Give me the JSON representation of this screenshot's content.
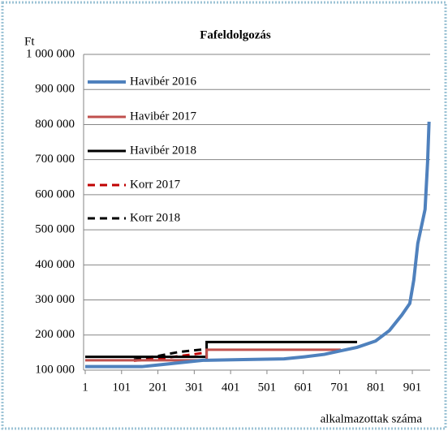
{
  "chart_data": {
    "type": "line",
    "title": "Fafeldolgozás",
    "y_label": "Ft",
    "x_label": "alkalmazottak száma",
    "xlim": [
      1,
      950
    ],
    "xticks": [
      1,
      101,
      201,
      301,
      401,
      501,
      601,
      701,
      801,
      901
    ],
    "ylim": [
      100000,
      1000000
    ],
    "yticks": [
      {
        "value": 100000,
        "label": "100 000"
      },
      {
        "value": 200000,
        "label": "200 000"
      },
      {
        "value": 300000,
        "label": "300 000"
      },
      {
        "value": 400000,
        "label": "400 000"
      },
      {
        "value": 500000,
        "label": "500 000"
      },
      {
        "value": 600000,
        "label": "600 000"
      },
      {
        "value": 700000,
        "label": "700 000"
      },
      {
        "value": 800000,
        "label": "800 000"
      },
      {
        "value": 900000,
        "label": "900 000"
      },
      {
        "value": 1000000,
        "label": "1 000 000"
      }
    ],
    "grid": true,
    "legend": "upper left",
    "series": [
      {
        "name": "Havibér 2016",
        "color": "#4f81bd",
        "dashed": false,
        "x": [
          1,
          157,
          213,
          325,
          436,
          548,
          604,
          659,
          704,
          749,
          800,
          838,
          872,
          894,
          905,
          916,
          928,
          936,
          943,
          947
        ],
        "values": [
          110000,
          110000,
          116000,
          128000,
          130000,
          132000,
          138000,
          145000,
          155000,
          165000,
          183000,
          213000,
          257000,
          290000,
          357000,
          461000,
          519000,
          558000,
          693000,
          808000
        ]
      },
      {
        "name": "Havibér 2017",
        "color": "#c0504d",
        "dashed": false,
        "x": [
          1,
          335,
          335,
          704
        ],
        "values": [
          128000,
          128000,
          158000,
          158000
        ]
      },
      {
        "name": "Havibér 2018",
        "color": "#000000",
        "dashed": false,
        "x": [
          1,
          335,
          335,
          749
        ],
        "values": [
          138000,
          138000,
          180000,
          180000
        ]
      },
      {
        "name": "Korr 2017",
        "color": "#c00000",
        "dashed": true,
        "x": [
          135,
          200,
          260,
          335
        ],
        "values": [
          127000,
          132000,
          140000,
          150000
        ]
      },
      {
        "name": "Korr 2018",
        "color": "#000000",
        "dashed": true,
        "x": [
          135,
          200,
          260,
          335
        ],
        "values": [
          130000,
          140000,
          152000,
          160000
        ]
      }
    ]
  }
}
